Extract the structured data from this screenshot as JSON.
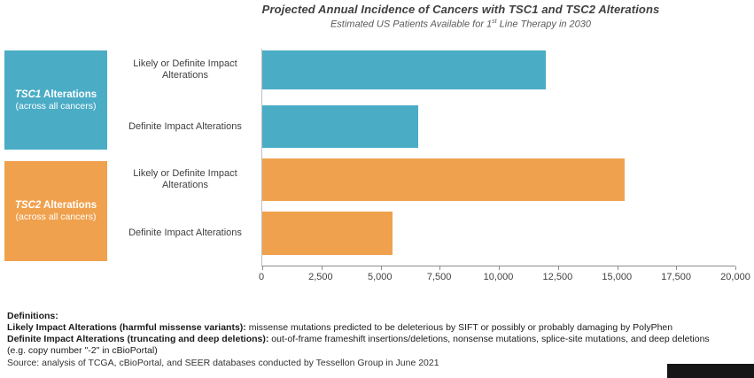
{
  "header": {
    "title": "Projected Annual Incidence of Cancers with TSC1 and TSC2 Alterations",
    "subtitle_prefix": "Estimated US Patients Available for 1",
    "subtitle_sup": "st",
    "subtitle_suffix": " Line Therapy in 2030"
  },
  "groups": [
    {
      "gene": "TSC1",
      "rest": " Alterations",
      "sub": "(across all cancers)",
      "color": "#4BACC6"
    },
    {
      "gene": "TSC2",
      "rest": " Alterations",
      "sub": "(across all cancers)",
      "color": "#F0A14E"
    }
  ],
  "chart_data": {
    "type": "bar",
    "orientation": "horizontal",
    "title": "Projected Annual Incidence of Cancers with TSC1 and TSC2 Alterations",
    "subtitle": "Estimated US Patients Available for 1st Line Therapy in 2030",
    "group_labels": [
      "TSC1 Alterations (across all cancers)",
      "TSC2 Alterations (across all cancers)"
    ],
    "categories": [
      "Likely or Definite Impact Alterations",
      "Definite Impact Alterations",
      "Likely or Definite Impact Alterations",
      "Definite Impact Alterations"
    ],
    "values": [
      12000,
      6600,
      15300,
      5500
    ],
    "colors": [
      "#4BACC6",
      "#4BACC6",
      "#F0A14E",
      "#F0A14E"
    ],
    "xlim": [
      0,
      20000
    ],
    "xtick_values": [
      0,
      2500,
      5000,
      7500,
      10000,
      12500,
      15000,
      17500,
      20000
    ],
    "xticks": [
      "0",
      "2,500",
      "5,000",
      "7,500",
      "10,000",
      "12,500",
      "15,000",
      "17,500",
      "20,000"
    ],
    "grid": false,
    "legend": false
  },
  "definitions": {
    "heading": "Definitions:",
    "items": [
      {
        "term": "Likely Impact Alterations (harmful missense variants):",
        "text": " missense mutations predicted to be deleterious by SIFT or possibly or probably damaging by PolyPhen"
      },
      {
        "term": "Definite Impact Alterations (truncating and deep deletions):",
        "text": " out-of-frame frameshift insertions/deletions, nonsense mutations, splice-site mutations, and deep deletions"
      }
    ],
    "note": "(e.g. copy number \"-2\" in cBioPortal)"
  },
  "source": "Source:  analysis of TCGA, cBioPortal, and SEER databases conducted by Tessellon Group in June 2021"
}
